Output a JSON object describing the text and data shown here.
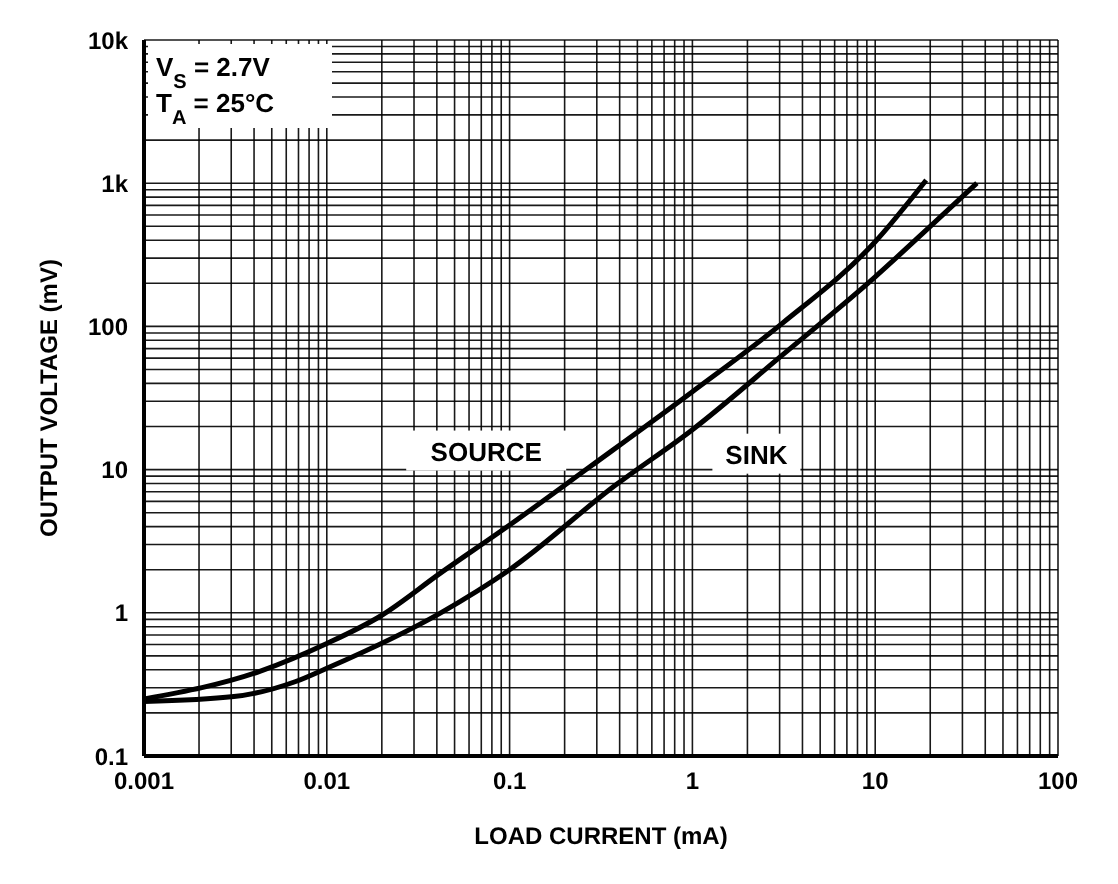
{
  "chart_data": {
    "type": "line",
    "xlabel": "LOAD CURRENT (mA)",
    "ylabel": "OUTPUT VOLTAGE (mV)",
    "log": "xy",
    "grid": true,
    "xlim": [
      0.001,
      100
    ],
    "xticks": [
      0.001,
      0.01,
      0.1,
      1,
      10,
      100
    ],
    "ylim": [
      0.1,
      10000
    ],
    "yticks": [
      0.1,
      1,
      10,
      100,
      {
        "value": 1000,
        "label": "1k"
      },
      {
        "value": 10000,
        "label": "10k"
      }
    ],
    "annotations": [
      "V$_{S}$ = 2.7V",
      "T$_{A}$ = 25°C"
    ],
    "series": [
      {
        "name": "SOURCE",
        "color": "#000000",
        "x": [
          0.001,
          0.0043,
          0.01,
          0.0197,
          0.042,
          0.1,
          0.276,
          1,
          3.1,
          10,
          19
        ],
        "values": [
          0.25,
          0.39,
          0.61,
          0.95,
          1.9,
          4.1,
          10.5,
          35,
          105,
          390,
          1050
        ]
      },
      {
        "name": "SINK",
        "color": "#000000",
        "x": [
          0.001,
          0.0031,
          0.0067,
          0.01,
          0.042,
          0.1,
          0.38,
          1,
          3.1,
          10,
          20.7,
          36
        ],
        "values": [
          0.24,
          0.26,
          0.33,
          0.41,
          1.0,
          2.0,
          7.8,
          19,
          63,
          222,
          520,
          1000
        ]
      }
    ]
  }
}
